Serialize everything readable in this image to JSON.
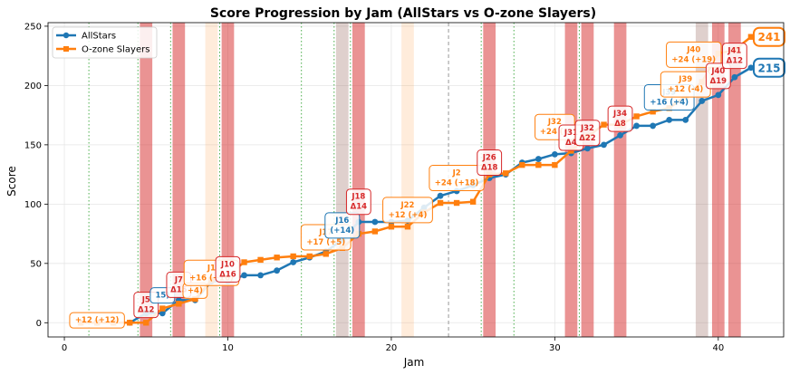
{
  "chart_data": {
    "type": "line",
    "title": "Score Progression by Jam (AllStars vs O-zone Slayers)",
    "xlabel": "Jam",
    "ylabel": "Score",
    "xlim": [
      -1,
      44
    ],
    "ylim": [
      -12,
      253
    ],
    "x_ticks": [
      0,
      10,
      20,
      30,
      40
    ],
    "y_ticks": [
      0,
      50,
      100,
      150,
      200,
      250
    ],
    "grid": true,
    "legend_position": "upper-left",
    "colors": {
      "allstars": "#1f77b4",
      "ozone": "#ff7f0e",
      "lead_change": "#d62728",
      "period_line": "#2ca02c",
      "dashed_line": "#999999",
      "tan_band": "#8c564b"
    },
    "series": [
      {
        "name": "AllStars",
        "color": "#1f77b4",
        "marker": "circle",
        "x": [
          1,
          2,
          3,
          4,
          5,
          6,
          7,
          8,
          9,
          10,
          11,
          12,
          13,
          14,
          15,
          16,
          17,
          18,
          19,
          20,
          21,
          22,
          23,
          24,
          25,
          26,
          27,
          28,
          29,
          30,
          31,
          32,
          33,
          34,
          35,
          36,
          37,
          38,
          39,
          40,
          41,
          42
        ],
        "y": [
          0,
          0,
          0,
          0,
          8,
          8,
          19,
          19,
          35,
          35,
          40,
          40,
          44,
          51,
          55,
          60,
          70,
          85,
          85,
          85,
          86,
          97,
          107,
          111,
          116,
          122,
          125,
          135,
          138,
          142,
          143,
          147,
          150,
          158,
          166,
          166,
          171,
          171,
          187,
          192,
          207,
          215
        ]
      },
      {
        "name": "O-zone Slayers",
        "color": "#ff7f0e",
        "marker": "square",
        "x": [
          1,
          2,
          3,
          4,
          5,
          6,
          7,
          8,
          9,
          10,
          11,
          12,
          13,
          14,
          15,
          16,
          17,
          18,
          19,
          20,
          21,
          22,
          23,
          24,
          25,
          26,
          27,
          28,
          29,
          30,
          31,
          32,
          33,
          34,
          35,
          36,
          37,
          38,
          39,
          40,
          41,
          42
        ],
        "y": [
          0,
          0,
          0,
          0,
          0,
          12,
          16,
          20,
          36,
          40,
          51,
          53,
          55,
          56,
          56,
          58,
          63,
          75,
          77,
          81,
          81,
          93,
          101,
          101,
          102,
          125,
          126,
          133,
          133,
          133,
          145,
          157,
          167,
          167,
          174,
          178,
          181,
          191,
          203,
          227,
          230,
          241
        ]
      }
    ],
    "lead_change_jams": [
      5,
      7,
      10,
      18,
      26,
      31,
      32,
      34,
      40,
      41
    ],
    "tan_band_jams": [
      17,
      39
    ],
    "light_orange_band_jams": [
      9,
      21
    ],
    "green_dotted_lines": [
      1.5,
      4.5,
      6.5,
      9.5,
      14.5,
      16.5,
      17.5,
      25.5,
      27.5,
      31.5
    ],
    "gray_dashed_lines": [
      23.5
    ],
    "annotations": [
      {
        "jam": 2,
        "score": 2,
        "text": "+12 (+12)",
        "team": "O-zone Slayers"
      },
      {
        "jam": 5,
        "score": 15,
        "text": "J5",
        "sub": "Δ12",
        "kind": "lead"
      },
      {
        "jam": 6,
        "score": 23,
        "text": "15)",
        "team": "AllStars"
      },
      {
        "jam": 7,
        "score": 32,
        "text": "J7",
        "sub": "Δ15",
        "kind": "lead"
      },
      {
        "jam": 8,
        "score": 27,
        "text": "+4)",
        "team": "O-zone Slayers"
      },
      {
        "jam": 9,
        "score": 42,
        "text": "J1",
        "sub": "+16 (+16)",
        "team": "O-zone Slayers"
      },
      {
        "jam": 10,
        "score": 45,
        "text": "J10",
        "sub": "Δ16",
        "kind": "lead"
      },
      {
        "jam": 16,
        "score": 72,
        "text": "J17",
        "sub": "+17 (+5)",
        "team": "O-zone Slayers"
      },
      {
        "jam": 17,
        "score": 82,
        "text": "J16",
        "sub": "(+14)",
        "team": "AllStars"
      },
      {
        "jam": 18,
        "score": 102,
        "text": "J18",
        "sub": "Δ14",
        "kind": "lead"
      },
      {
        "jam": 21,
        "score": 95,
        "text": "J22",
        "sub": "+12 (+4)",
        "team": "O-zone Slayers"
      },
      {
        "jam": 24,
        "score": 122,
        "text": "J2",
        "sub": "+24 (+18)",
        "team": "O-zone Slayers"
      },
      {
        "jam": 26,
        "score": 135,
        "text": "J26",
        "sub": "Δ18",
        "kind": "lead"
      },
      {
        "jam": 30,
        "score": 165,
        "text": "J32",
        "sub": "+24 (+",
        "team": "O-zone Slayers"
      },
      {
        "jam": 31,
        "score": 156,
        "text": "J31",
        "sub": "Δ4",
        "kind": "lead"
      },
      {
        "jam": 32,
        "score": 160,
        "text": "J32",
        "sub": "Δ22",
        "kind": "lead"
      },
      {
        "jam": 34,
        "score": 172,
        "text": "J34",
        "sub": "Δ8",
        "kind": "lead"
      },
      {
        "jam": 37,
        "score": 190,
        "text": "J39",
        "sub": "+16 (+4)",
        "team": "AllStars"
      },
      {
        "jam": 38,
        "score": 201,
        "text": "J39",
        "sub": "+12 (-4)",
        "team": "O-zone Slayers"
      },
      {
        "jam": 38.5,
        "score": 226,
        "text": "J40",
        "sub": "+24 (+19)",
        "team": "O-zone Slayers"
      },
      {
        "jam": 40,
        "score": 208,
        "text": "J40",
        "sub": "Δ19",
        "kind": "lead"
      },
      {
        "jam": 41,
        "score": 225,
        "text": "J41",
        "sub": "Δ12",
        "kind": "lead"
      }
    ],
    "end_labels": [
      {
        "team": "O-zone Slayers",
        "value": "241"
      },
      {
        "team": "AllStars",
        "value": "215"
      }
    ]
  }
}
